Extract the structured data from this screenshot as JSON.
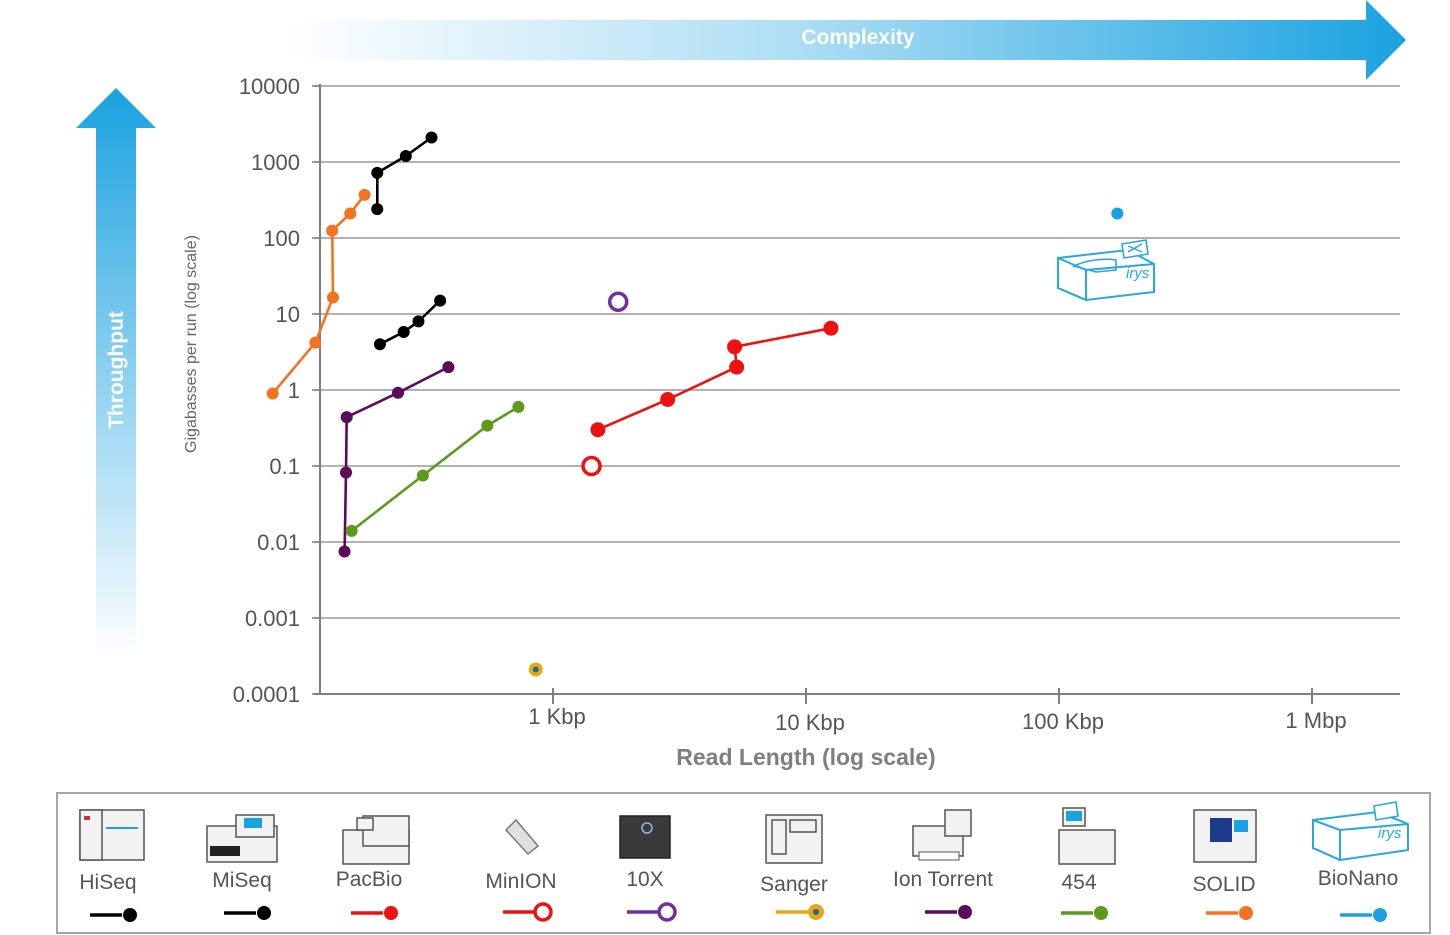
{
  "colors": {
    "hiseq": "#000000",
    "miseq": "#000000",
    "pacbio": "#ee1111",
    "minion": "#ee1111",
    "tenx": "#7030a0",
    "sanger": "#e6a817",
    "iontorrent": "#5c0a5c",
    "fourfivefour": "#5b9a1a",
    "solid": "#f37320",
    "bionano": "#1aa2e0",
    "arrow": "#1aa2e0",
    "grid": "#999999"
  },
  "arrows": {
    "complexity_label": "Complexity",
    "throughput_label": "Throughput"
  },
  "icons": {
    "irys_text": "irys"
  },
  "chart_data": {
    "type": "scatter",
    "title": "",
    "xlabel": "Read Length (log scale)",
    "ylabel": "Gigabasses per run (log scale)",
    "x_scale": "log",
    "y_scale": "log",
    "xlim": [
      70,
      2500000
    ],
    "ylim": [
      0.0001,
      10000
    ],
    "x_ticks": [
      {
        "value": 1000,
        "label": "1 Kbp"
      },
      {
        "value": 10000,
        "label": "10 Kbp"
      },
      {
        "value": 100000,
        "label": "100 Kbp"
      },
      {
        "value": 1000000,
        "label": "1 Mbp"
      }
    ],
    "y_ticks": [
      {
        "value": 10000,
        "label": "10000"
      },
      {
        "value": 1000,
        "label": "1000"
      },
      {
        "value": 100,
        "label": "100"
      },
      {
        "value": 10,
        "label": "10"
      },
      {
        "value": 1,
        "label": "1"
      },
      {
        "value": 0.1,
        "label": "0.1"
      },
      {
        "value": 0.01,
        "label": "0.01"
      },
      {
        "value": 0.001,
        "label": "0.001"
      },
      {
        "value": 0.0001,
        "label": "0.0001"
      }
    ],
    "grid": true,
    "legend_position": "bottom",
    "series": [
      {
        "key": "hiseq",
        "name": "HiSeq",
        "marker": "filled",
        "segments": [
          [
            [
              202,
              240
            ],
            [
              202,
              720
            ],
            [
              262,
              1200
            ],
            [
              331,
              2100
            ]
          ]
        ]
      },
      {
        "key": "miseq",
        "name": "MiSeq",
        "marker": "filled",
        "segments": [
          [
            [
              207,
              4
            ],
            [
              257,
              5.8
            ],
            [
              294,
              8
            ],
            [
              358,
              15
            ]
          ]
        ]
      },
      {
        "key": "pacbio",
        "name": "PacBio",
        "marker": "filled",
        "segments": [
          [
            [
              1505,
              0.3
            ],
            [
              2840,
              0.75
            ],
            [
              5320,
              2
            ],
            [
              5220,
              3.7
            ],
            [
              12550,
              6.5
            ]
          ]
        ]
      },
      {
        "key": "minion",
        "name": "MinION",
        "marker": "open",
        "segments": [
          [
            [
              1420,
              0.1
            ]
          ]
        ]
      },
      {
        "key": "tenx",
        "name": "10X",
        "marker": "open",
        "segments": [
          [
            [
              1810,
              14.5
            ]
          ]
        ]
      },
      {
        "key": "sanger",
        "name": "Sanger",
        "marker": "sanger",
        "segments": [
          [
            [
              855,
              0.00021
            ]
          ]
        ]
      },
      {
        "key": "iontorrent",
        "name": "Ion Torrent",
        "marker": "filled",
        "segments": [
          [
            [
              150,
              0.0075
            ],
            [
              152,
              0.082
            ],
            [
              153,
              0.44
            ],
            [
              244,
              0.92
            ],
            [
              386,
              2
            ]
          ]
        ]
      },
      {
        "key": "fourfivefour",
        "name": "454",
        "marker": "filled",
        "segments": [
          [
            [
              160,
              0.014
            ],
            [
              306,
              0.075
            ],
            [
              550,
              0.34
            ],
            [
              730,
              0.6
            ]
          ]
        ]
      },
      {
        "key": "solid",
        "name": "SOLID",
        "marker": "filled",
        "segments": [
          [
            [
              78,
              0.9
            ],
            [
              115,
              4.2
            ],
            [
              135,
              16.5
            ],
            [
              134,
              125
            ],
            [
              158,
              210
            ],
            [
              180,
              370
            ]
          ]
        ]
      },
      {
        "key": "bionano",
        "name": "BioNano",
        "marker": "filled",
        "segments": [
          [
            [
              170000,
              210
            ]
          ]
        ]
      }
    ]
  }
}
